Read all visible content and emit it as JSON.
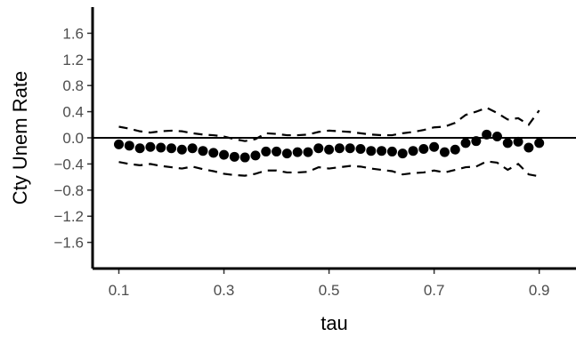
{
  "chart_data": {
    "type": "scatter",
    "title": "",
    "xlabel": "tau",
    "ylabel": "Cty Unem Rate",
    "xlim": [
      0.05,
      0.97
    ],
    "ylim": [
      -2.0,
      2.0
    ],
    "xticks": [
      0.1,
      0.3,
      0.5,
      0.7,
      0.9
    ],
    "xtick_labels": [
      "0.1",
      "0.3",
      "0.5",
      "0.7",
      "0.9"
    ],
    "yticks": [
      1.6,
      1.2,
      0.8,
      0.4,
      0.0,
      -0.4,
      -0.8,
      -1.2,
      -1.6
    ],
    "ytick_labels": [
      "1.6",
      "1.2",
      "0.8",
      "0.4",
      "0.0",
      "−0.4",
      "−0.8",
      "−1.2",
      "−1.6"
    ],
    "hline": 0.0,
    "grid": false,
    "legend": false,
    "colors": {
      "points": "#000000",
      "bands": "#000000",
      "axes": "#000000"
    },
    "x": [
      0.1,
      0.12,
      0.14,
      0.16,
      0.18,
      0.2,
      0.22,
      0.24,
      0.26,
      0.28,
      0.3,
      0.32,
      0.34,
      0.36,
      0.38,
      0.4,
      0.42,
      0.44,
      0.46,
      0.48,
      0.5,
      0.52,
      0.54,
      0.56,
      0.58,
      0.6,
      0.62,
      0.64,
      0.66,
      0.68,
      0.7,
      0.72,
      0.74,
      0.76,
      0.78,
      0.8,
      0.82,
      0.84,
      0.86,
      0.88,
      0.9
    ],
    "series": [
      {
        "values": [
          -0.1,
          -0.12,
          -0.16,
          -0.14,
          -0.15,
          -0.16,
          -0.18,
          -0.16,
          -0.2,
          -0.23,
          -0.26,
          -0.29,
          -0.3,
          -0.27,
          -0.21,
          -0.21,
          -0.24,
          -0.22,
          -0.22,
          -0.16,
          -0.18,
          -0.16,
          -0.16,
          -0.17,
          -0.2,
          -0.2,
          -0.21,
          -0.24,
          -0.2,
          -0.17,
          -0.14,
          -0.22,
          -0.18,
          -0.08,
          -0.05,
          0.05,
          0.02,
          -0.08,
          -0.06,
          -0.15,
          -0.08
        ]
      },
      {
        "values": [
          0.17,
          0.14,
          0.1,
          0.08,
          0.1,
          0.11,
          0.1,
          0.07,
          0.05,
          0.04,
          0.02,
          -0.02,
          -0.05,
          -0.02,
          0.07,
          0.06,
          0.04,
          0.04,
          0.05,
          0.09,
          0.11,
          0.1,
          0.09,
          0.07,
          0.05,
          0.04,
          0.04,
          0.07,
          0.09,
          0.12,
          0.16,
          0.17,
          0.23,
          0.35,
          0.4,
          0.46,
          0.38,
          0.28,
          0.3,
          0.2,
          0.42
        ]
      },
      {
        "values": [
          -0.37,
          -0.4,
          -0.42,
          -0.4,
          -0.43,
          -0.45,
          -0.47,
          -0.44,
          -0.48,
          -0.51,
          -0.55,
          -0.57,
          -0.58,
          -0.55,
          -0.5,
          -0.5,
          -0.53,
          -0.53,
          -0.52,
          -0.45,
          -0.47,
          -0.45,
          -0.43,
          -0.44,
          -0.47,
          -0.49,
          -0.51,
          -0.56,
          -0.54,
          -0.53,
          -0.5,
          -0.53,
          -0.49,
          -0.45,
          -0.44,
          -0.36,
          -0.38,
          -0.49,
          -0.4,
          -0.56,
          -0.59
        ]
      }
    ]
  }
}
